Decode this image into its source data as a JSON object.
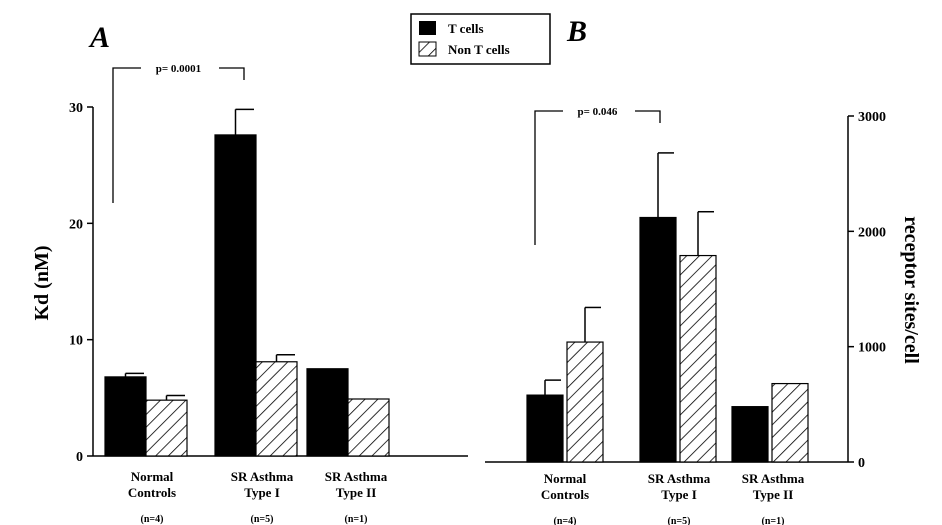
{
  "legend": {
    "items": [
      {
        "label": "T cells",
        "fill": "solid"
      },
      {
        "label": "Non T cells",
        "fill": "hatched"
      }
    ]
  },
  "chart_data": [
    {
      "type": "bar",
      "panel_label": "A",
      "ylabel": "Kd  (nM)",
      "ylim": [
        0,
        30
      ],
      "yticks": [
        0,
        10,
        20,
        30
      ],
      "y_axis_side": "left",
      "categories": [
        {
          "line1": "Normal",
          "line2": "Controls",
          "n": "(n=4)"
        },
        {
          "line1": "SR Asthma",
          "line2": "Type I",
          "n": "(n=5)"
        },
        {
          "line1": "SR Asthma",
          "line2": "Type II",
          "n": "(n=1)"
        }
      ],
      "series": [
        {
          "name": "T cells",
          "values": [
            6.8,
            27.6,
            7.5
          ],
          "errors": [
            0.3,
            2.2,
            null
          ]
        },
        {
          "name": "Non T cells",
          "values": [
            4.8,
            8.1,
            4.9
          ],
          "errors": [
            0.4,
            0.6,
            null
          ]
        }
      ],
      "annotation": {
        "text": "p= 0.0001",
        "from_category": 0,
        "to_category": 1
      }
    },
    {
      "type": "bar",
      "panel_label": "B",
      "ylabel": "receptor sites/cell",
      "ylim": [
        0,
        3000
      ],
      "yticks": [
        0,
        1000,
        2000,
        3000
      ],
      "y_axis_side": "right",
      "categories": [
        {
          "line1": "Normal",
          "line2": "Controls",
          "n": "(n=4)"
        },
        {
          "line1": "SR Asthma",
          "line2": "Type I",
          "n": "(n=5)"
        },
        {
          "line1": "SR Asthma",
          "line2": "Type II",
          "n": "(n=1)"
        }
      ],
      "series": [
        {
          "name": "T cells",
          "values": [
            580,
            2120,
            480
          ],
          "errors": [
            130,
            560,
            null
          ]
        },
        {
          "name": "Non T cells",
          "values": [
            1040,
            1790,
            680
          ],
          "errors": [
            300,
            380,
            null
          ]
        }
      ],
      "annotation": {
        "text": "p= 0.046",
        "from_category": 0,
        "to_category": 1
      }
    }
  ]
}
